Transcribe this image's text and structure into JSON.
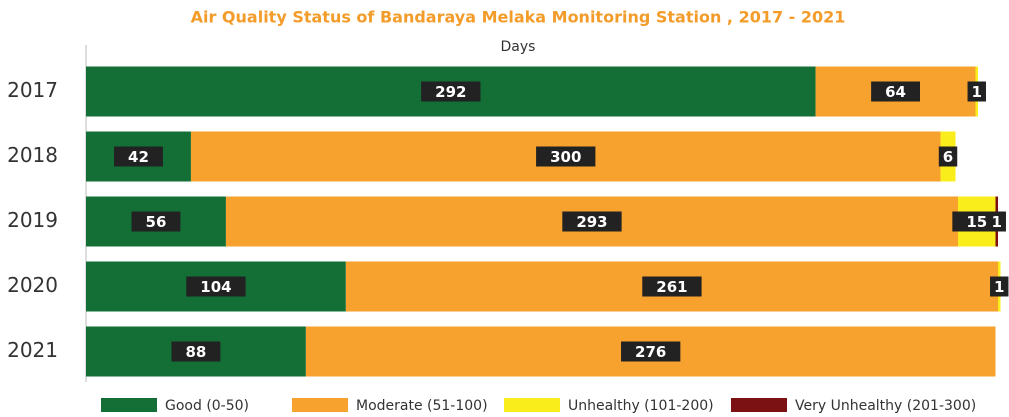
{
  "chart_data": {
    "type": "stacked-barh",
    "title": "Air Quality Status of Bandaraya Melaka Monitoring Station , 2017 - 2021",
    "x_label": "Days",
    "categories": [
      "2017",
      "2018",
      "2019",
      "2020",
      "2021"
    ],
    "series": [
      {
        "name": "Good (0-50)",
        "color": "#136f35",
        "values": [
          292,
          42,
          56,
          104,
          88
        ]
      },
      {
        "name": "Moderate (51-100)",
        "color": "#f7a12e",
        "values": [
          64,
          300,
          293,
          261,
          276
        ]
      },
      {
        "name": "Unhealthy (101-200)",
        "color": "#f9ee1c",
        "values": [
          1,
          6,
          15,
          1,
          null
        ]
      },
      {
        "name": "Very Unhealthy (201-300)",
        "color": "#7b1113",
        "values": [
          null,
          null,
          1,
          null,
          null
        ]
      }
    ],
    "xlim": [
      0,
      365
    ]
  }
}
